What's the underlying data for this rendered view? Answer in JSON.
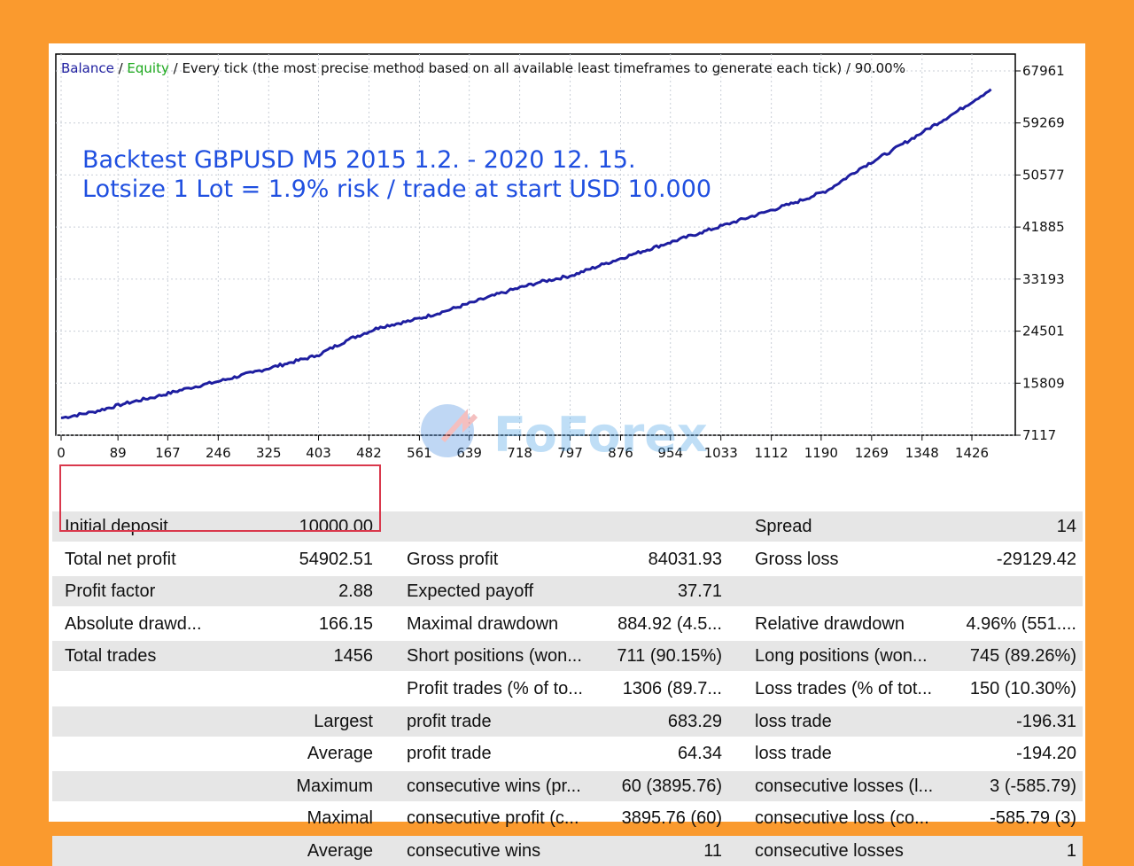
{
  "chart": {
    "header": {
      "balance": "Balance",
      "sep1": " / ",
      "equity": "Equity",
      "rest": " / Every tick (the most precise method based on all available least timeframes to generate each tick) / 90.00%"
    },
    "annotation": {
      "line1": "Backtest GBPUSD M5  2015 1.2. - 2020 12. 15.",
      "line2": "Lotsize 1 Lot = 1.9% risk / trade at start USD 10.000"
    },
    "watermark": "FoForex",
    "colors": {
      "balance": "#1E1EA0",
      "equity": "#1DAA1D",
      "annotation": "#1F4FE0",
      "grid": "#C8CED6",
      "frame": "#000000",
      "background": "#FA9A2E"
    }
  },
  "chart_data": {
    "type": "line",
    "x_ticks": [
      0,
      89,
      167,
      246,
      325,
      403,
      482,
      561,
      639,
      718,
      797,
      876,
      954,
      1033,
      1112,
      1190,
      1269,
      1348,
      1426
    ],
    "y_ticks": [
      7117,
      15809,
      24501,
      33193,
      41885,
      50577,
      59269,
      67961
    ],
    "xlim": [
      0,
      1456
    ],
    "ylim": [
      7117,
      67961
    ],
    "grid": true,
    "series": [
      {
        "name": "Balance",
        "x": [
          0,
          50,
          100,
          150,
          200,
          250,
          300,
          350,
          400,
          450,
          500,
          550,
          600,
          650,
          700,
          750,
          800,
          850,
          900,
          950,
          1000,
          1050,
          1100,
          1150,
          1200,
          1250,
          1300,
          1350,
          1400,
          1456
        ],
        "y": [
          10000,
          11000,
          12400,
          13600,
          15000,
          16200,
          17600,
          19000,
          20400,
          23100,
          25200,
          26300,
          27800,
          29500,
          31200,
          32700,
          33800,
          35700,
          37500,
          39200,
          40900,
          42600,
          44300,
          46000,
          48000,
          51600,
          54600,
          57800,
          61000,
          64902.51
        ]
      }
    ]
  },
  "stats": {
    "rows": [
      [
        "Initial deposit",
        "10000.00",
        "",
        "",
        "Spread",
        "14"
      ],
      [
        "Total net profit",
        "54902.51",
        "Gross profit",
        "84031.93",
        "Gross loss",
        "-29129.42"
      ],
      [
        "Profit factor",
        "2.88",
        "Expected payoff",
        "37.71",
        "",
        ""
      ],
      [
        "Absolute drawd...",
        "166.15",
        "Maximal drawdown",
        "884.92 (4.5...",
        "Relative drawdown",
        "4.96% (551...."
      ],
      [
        "Total trades",
        "1456",
        "Short positions (won...",
        "711 (90.15%)",
        "Long positions (won...",
        "745 (89.26%)"
      ],
      [
        "",
        "",
        "Profit trades (% of to...",
        "1306 (89.7...",
        "Loss trades (% of tot...",
        "150 (10.30%)"
      ],
      [
        "",
        "Largest",
        "profit trade",
        "683.29",
        "loss trade",
        "-196.31"
      ],
      [
        "",
        "Average",
        "profit trade",
        "64.34",
        "loss trade",
        "-194.20"
      ],
      [
        "",
        "Maximum",
        "consecutive wins (pr...",
        "60 (3895.76)",
        "consecutive losses (l...",
        "3 (-585.79)"
      ],
      [
        "",
        "Maximal",
        "consecutive profit (c...",
        "3895.76 (60)",
        "consecutive loss (co...",
        "-585.79 (3)"
      ],
      [
        "",
        "Average",
        "consecutive wins",
        "11",
        "consecutive losses",
        "1"
      ]
    ]
  }
}
